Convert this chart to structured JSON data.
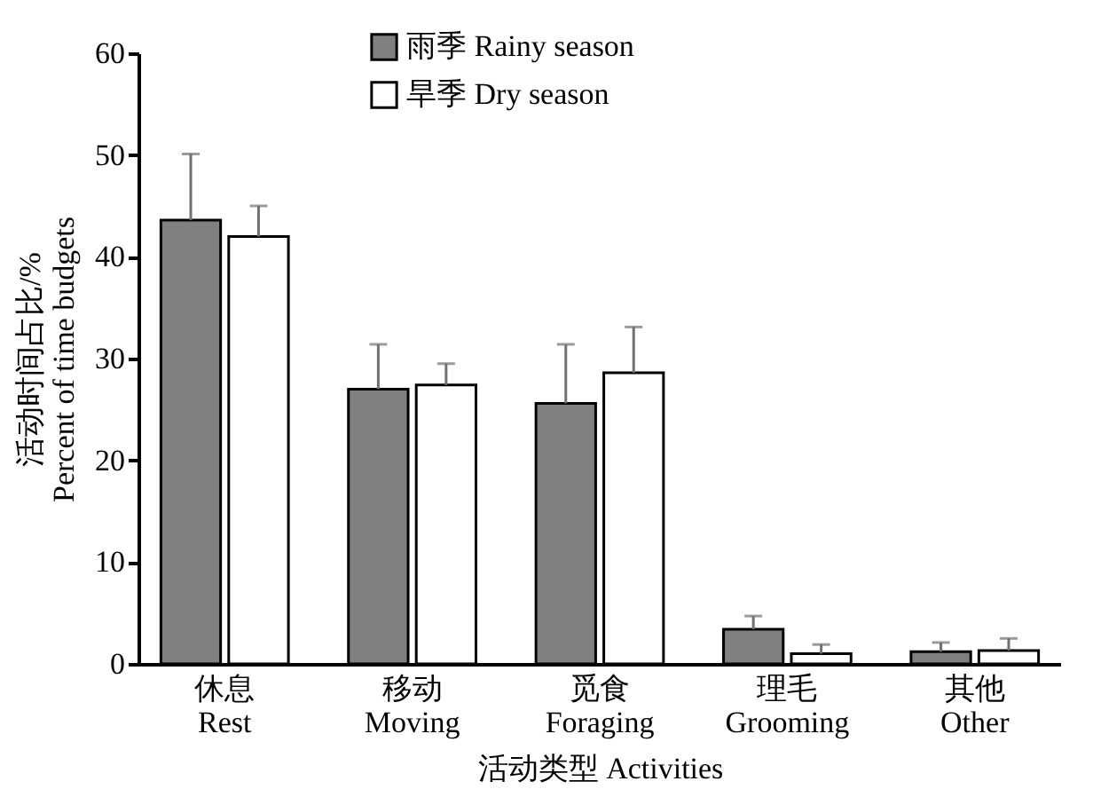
{
  "chart_data": {
    "type": "bar",
    "xlabel": "活动类型 Activities",
    "ylabel": "活动时间占比/%\nPercent of time budgets",
    "categories": [
      "休息\nRest",
      "移动\nMoving",
      "觅食\nForaging",
      "理毛\nGrooming",
      "其他\nOther"
    ],
    "series": [
      {
        "name": "雨季 Rainy season",
        "color": "#808080",
        "values": [
          43.6,
          27,
          25.6,
          3.4,
          1.2
        ],
        "errors": [
          6.5,
          4.4,
          5.8,
          1.3,
          0.9
        ]
      },
      {
        "name": "旱季 Dry season",
        "color": "#ffffff",
        "values": [
          42,
          27.4,
          28.6,
          1,
          1.3
        ],
        "errors": [
          3,
          2.1,
          4.5,
          0.9,
          1.2
        ]
      }
    ],
    "ylim": [
      0,
      60
    ],
    "yticks": [
      0,
      10,
      20,
      30,
      40,
      50,
      60
    ],
    "grid": false,
    "legend": "top left"
  }
}
